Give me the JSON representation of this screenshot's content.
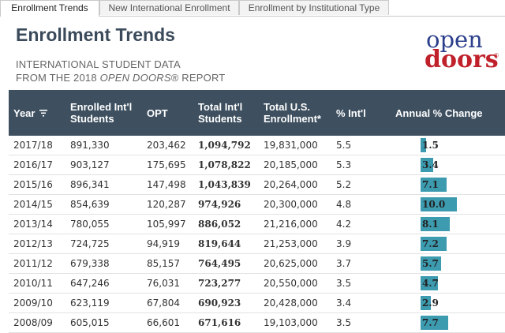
{
  "tabs": [
    {
      "label": "Enrollment Trends",
      "active": true
    },
    {
      "label": "New International Enrollment",
      "active": false
    },
    {
      "label": "Enrollment by Institutional Type",
      "active": false
    }
  ],
  "title": "Enrollment Trends",
  "subtitle": {
    "line1": "INTERNATIONAL STUDENT DATA",
    "line2_prefix": "FROM THE 2018 ",
    "line2_em": "OPEN DOORS",
    "line2_suffix": "® REPORT"
  },
  "logo": {
    "line1": "open",
    "line2": "doors",
    "reg": "®"
  },
  "table": {
    "headers": {
      "year": "Year",
      "enrolled": [
        "Enrolled Int'l",
        "Students"
      ],
      "opt": "OPT",
      "total": [
        "Total Int'l",
        "Students"
      ],
      "us": [
        "Total U.S.",
        "Enrollment*"
      ],
      "pct": "% Int'l",
      "change": "Annual % Change"
    },
    "rows": [
      {
        "year": "2017/18",
        "enrolled": "891,330",
        "opt": "203,462",
        "total": "1,094,792",
        "us": "19,831,000",
        "pct": "5.5",
        "change": "1.5",
        "change_value": 1.5
      },
      {
        "year": "2016/17",
        "enrolled": "903,127",
        "opt": "175,695",
        "total": "1,078,822",
        "us": "20,185,000",
        "pct": "5.3",
        "change": "3.4",
        "change_value": 3.4
      },
      {
        "year": "2015/16",
        "enrolled": "896,341",
        "opt": "147,498",
        "total": "1,043,839",
        "us": "20,264,000",
        "pct": "5.2",
        "change": "7.1",
        "change_value": 7.1
      },
      {
        "year": "2014/15",
        "enrolled": "854,639",
        "opt": "120,287",
        "total": "974,926",
        "us": "20,300,000",
        "pct": "4.8",
        "change": "10.0",
        "change_value": 10.0
      },
      {
        "year": "2013/14",
        "enrolled": "780,055",
        "opt": "105,997",
        "total": "886,052",
        "us": "21,216,000",
        "pct": "4.2",
        "change": "8.1",
        "change_value": 8.1
      },
      {
        "year": "2012/13",
        "enrolled": "724,725",
        "opt": "94,919",
        "total": "819,644",
        "us": "21,253,000",
        "pct": "3.9",
        "change": "7.2",
        "change_value": 7.2
      },
      {
        "year": "2011/12",
        "enrolled": "679,338",
        "opt": "85,157",
        "total": "764,495",
        "us": "20,625,000",
        "pct": "3.7",
        "change": "5.7",
        "change_value": 5.7
      },
      {
        "year": "2010/11",
        "enrolled": "647,246",
        "opt": "76,031",
        "total": "723,277",
        "us": "20,550,000",
        "pct": "3.5",
        "change": "4.7",
        "change_value": 4.7
      },
      {
        "year": "2009/10",
        "enrolled": "623,119",
        "opt": "67,804",
        "total": "690,923",
        "us": "20,428,000",
        "pct": "3.4",
        "change": "2.9",
        "change_value": 2.9
      },
      {
        "year": "2008/09",
        "enrolled": "605,015",
        "opt": "66,601",
        "total": "671,616",
        "us": "19,103,000",
        "pct": "3.5",
        "change": "7.7",
        "change_value": 7.7
      }
    ]
  },
  "colors": {
    "header_bg": "#3e5060",
    "bar": "#3d9bb0",
    "logo_blue": "#2b3f8c",
    "logo_red": "#c0202a"
  }
}
